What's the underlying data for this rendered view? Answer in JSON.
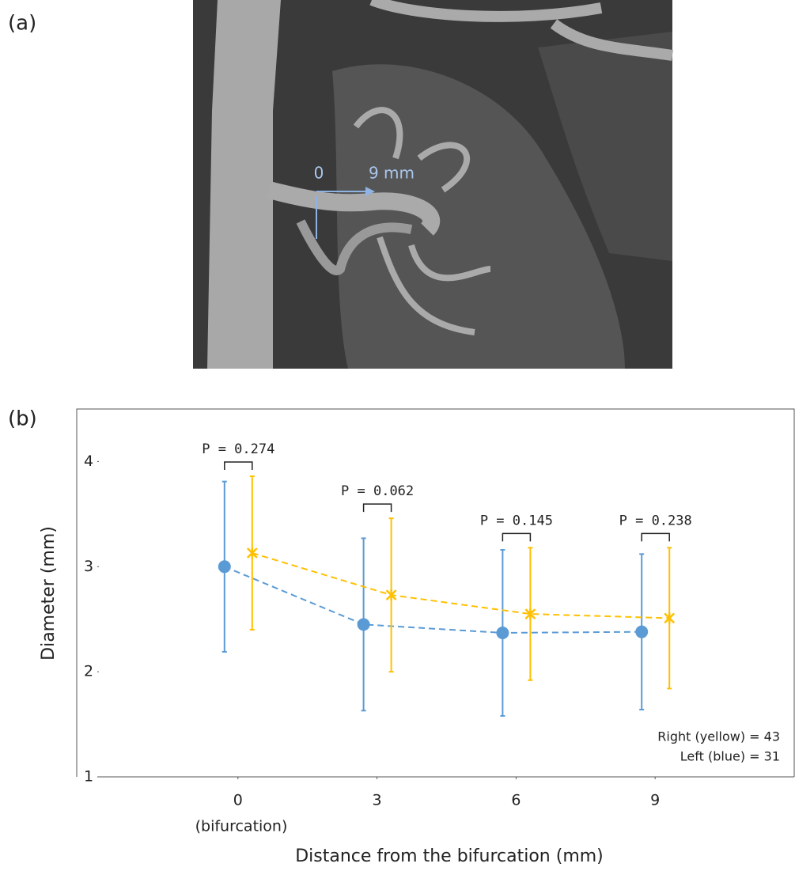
{
  "panel_a": {
    "label": "(a)",
    "start_label": "0",
    "end_label": "9 mm"
  },
  "chart_data": {
    "type": "errorbar-line",
    "panel_label": "(b)",
    "x_label": "Distance from the bifurcation (mm)",
    "y_label": "Diameter (mm)",
    "x": [
      0,
      3,
      6,
      9
    ],
    "xlim": [
      -3,
      12
    ],
    "xticks": [
      0,
      3,
      6,
      9
    ],
    "x_note": "(bifurcation)",
    "ylim": [
      1,
      4.5
    ],
    "yticks": [
      1,
      2,
      3,
      4
    ],
    "grid": false,
    "legend": "lower right",
    "p_labels": [
      "P = 0.274",
      "P = 0.062",
      "P = 0.145",
      "P = 0.238"
    ],
    "series": [
      {
        "name": "Left (blue) = 31",
        "color": "#5b9bd5",
        "marker": "circle",
        "values": [
          3.0,
          2.45,
          2.37,
          2.38
        ],
        "errors": [
          0.81,
          0.82,
          0.79,
          0.74
        ]
      },
      {
        "name": "Right (yellow) = 43",
        "color": "#ffc000",
        "marker": "star",
        "values": [
          3.13,
          2.73,
          2.55,
          2.51
        ],
        "errors": [
          0.73,
          0.73,
          0.63,
          0.67
        ]
      }
    ]
  }
}
